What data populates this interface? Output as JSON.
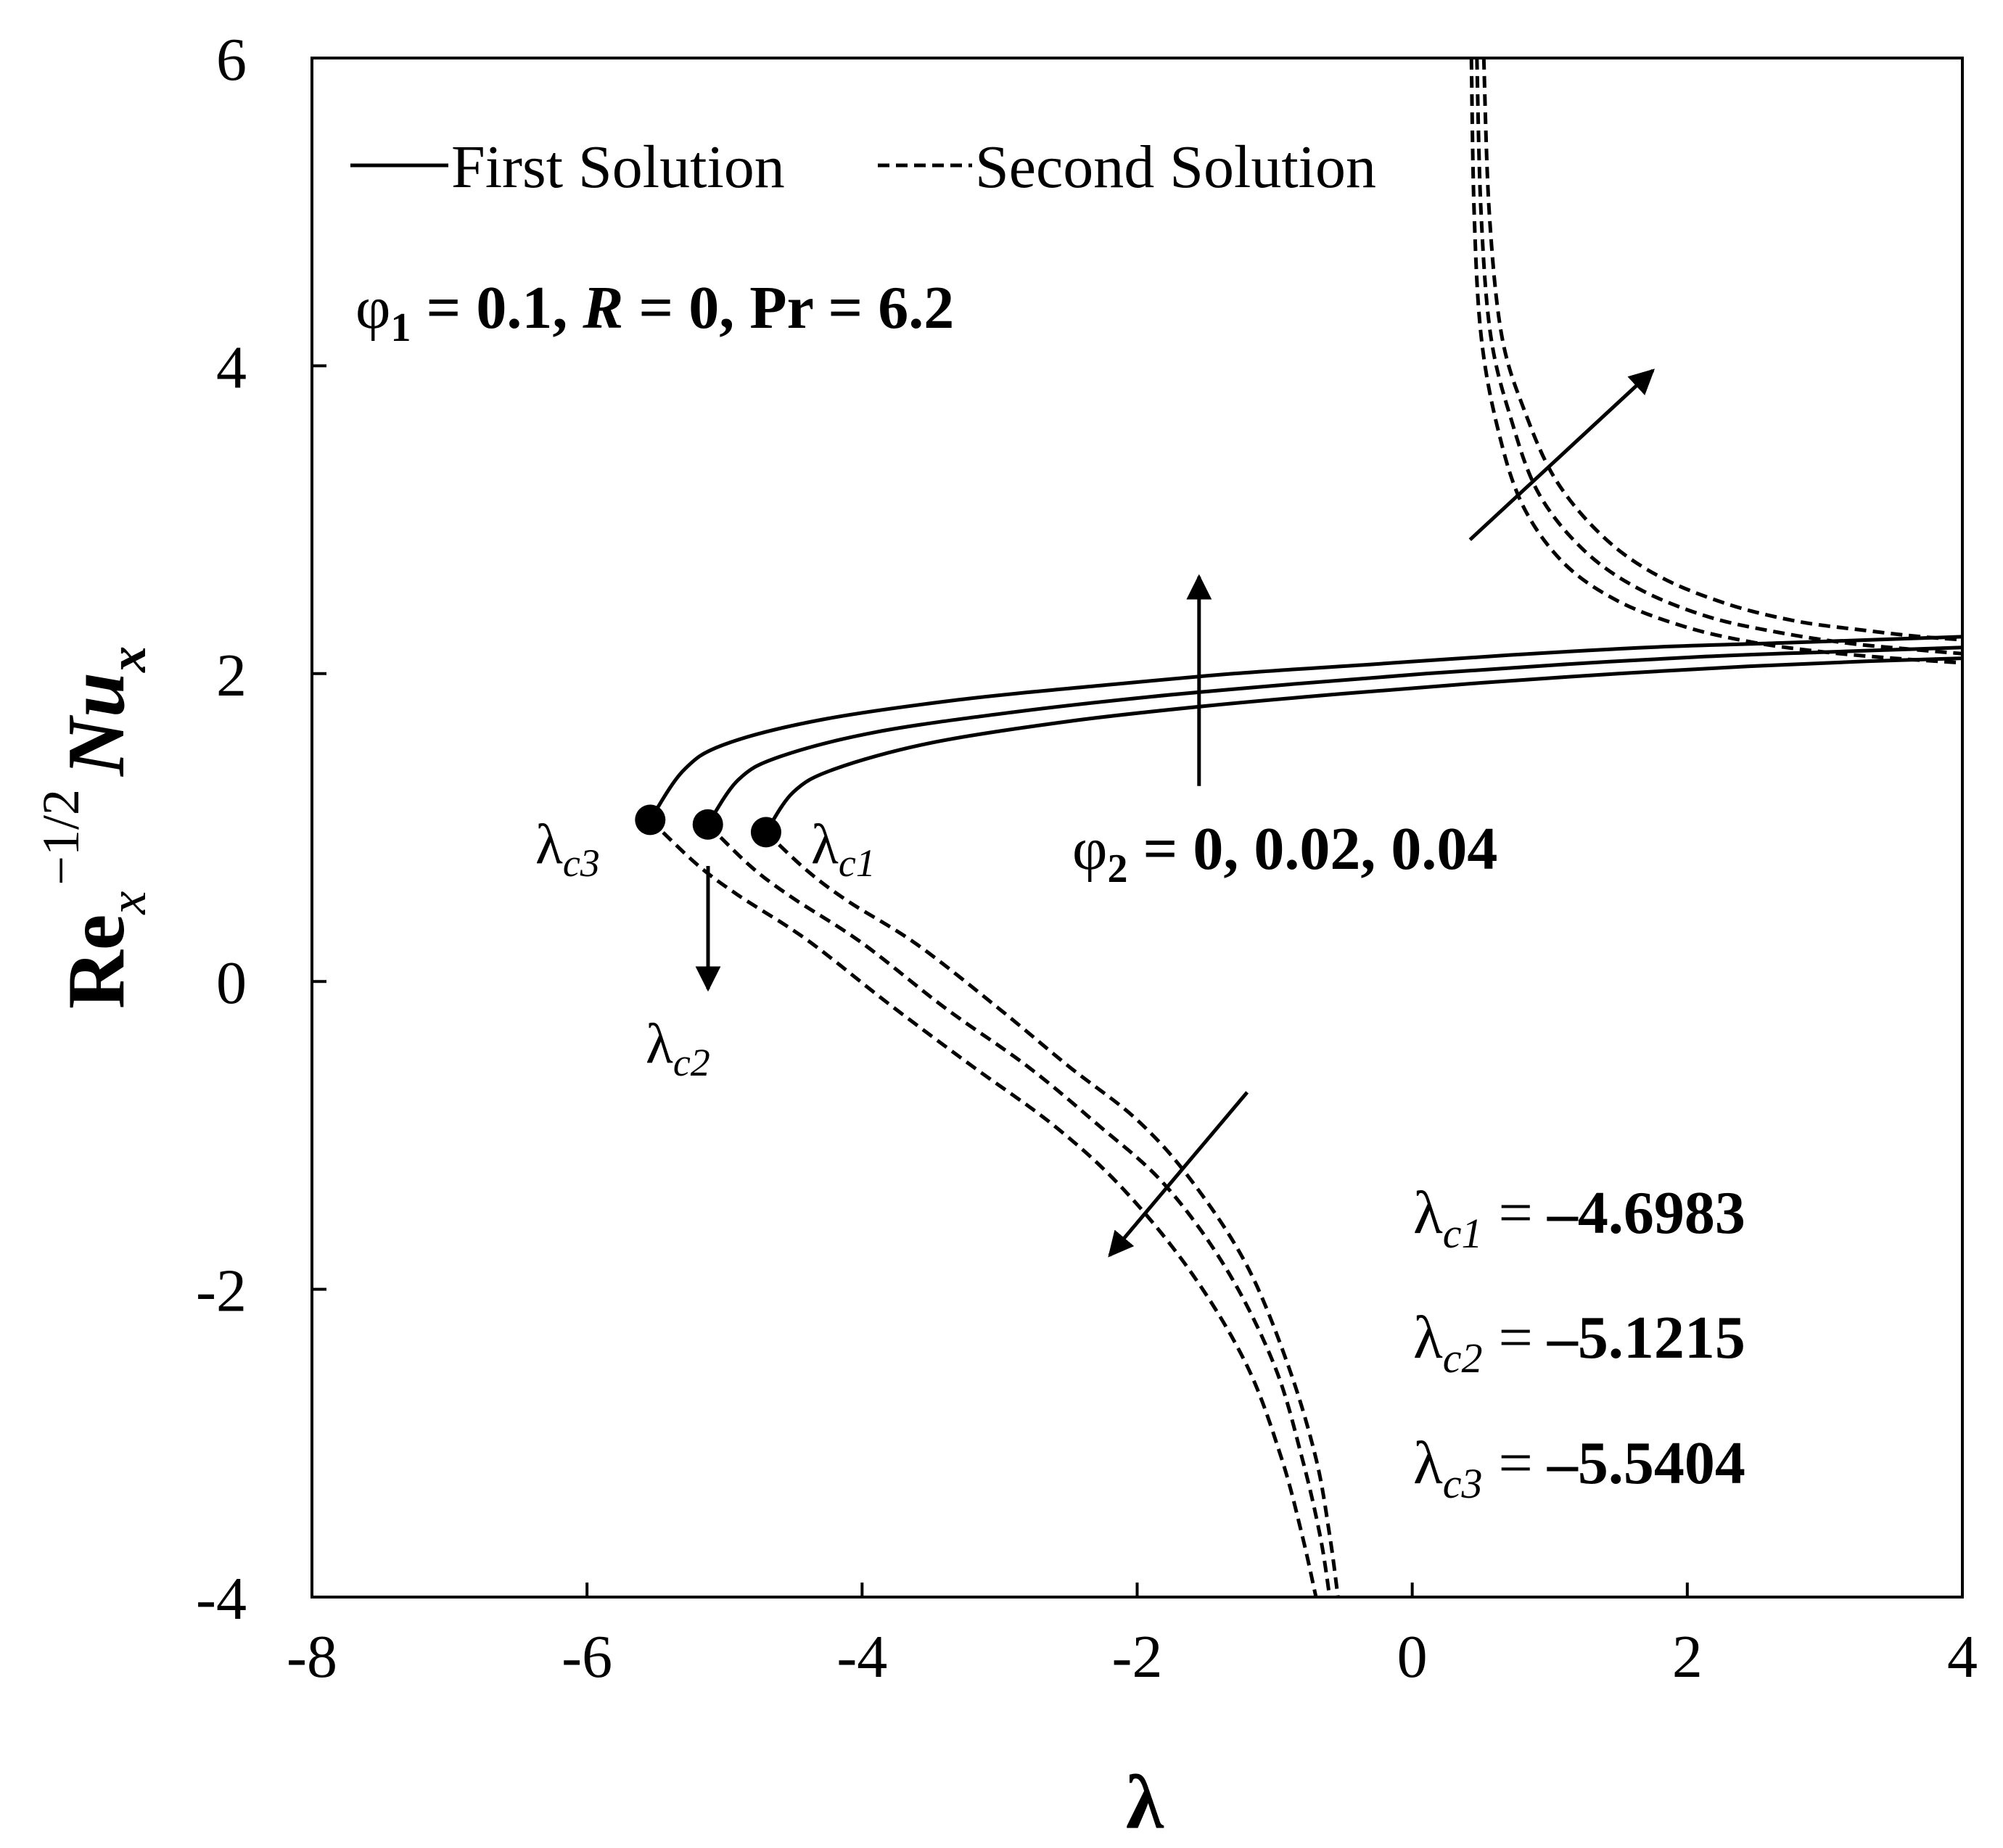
{
  "chart_data": {
    "type": "line",
    "xlabel": "λ",
    "ylabel": {
      "base": "Re",
      "base_sub": "x",
      "exponent": "−1/2",
      "main": "Nu",
      "main_sub": "x"
    },
    "xlim": [
      -8,
      4
    ],
    "ylim": [
      -4,
      6
    ],
    "x_ticks": [
      -8,
      -6,
      -4,
      -2,
      0,
      2,
      4
    ],
    "y_ticks": [
      -4,
      -2,
      0,
      2,
      4,
      6
    ],
    "x_tick_labels": [
      "-8",
      "-6",
      "-4",
      "-2",
      "0",
      "2",
      "4"
    ],
    "y_tick_labels": [
      "-4",
      "-2",
      "0",
      "2",
      "4",
      "6"
    ],
    "legend": {
      "placement": "top-left",
      "entries": [
        {
          "label": "First Solution",
          "style": "solid"
        },
        {
          "label": "Second Solution",
          "style": "dashed"
        }
      ]
    },
    "parameters": {
      "phi1": {
        "symbol": "φ",
        "sub": "1",
        "value": "0.1"
      },
      "R": {
        "symbol": "R",
        "value": "0"
      },
      "Pr": {
        "symbol": "Pr",
        "value": "6.2"
      }
    },
    "phi2_label": {
      "symbol": "φ",
      "sub": "2",
      "values": "0, 0.02, 0.04"
    },
    "critical_points": [
      {
        "label": "λ",
        "sub": "c1",
        "x": -4.6983,
        "y": 0.97,
        "value": "–4.6983"
      },
      {
        "label": "λ",
        "sub": "c2",
        "x": -5.1215,
        "y": 1.02,
        "value": "–5.1215"
      },
      {
        "label": "λ",
        "sub": "c3",
        "x": -5.5404,
        "y": 1.05,
        "value": "–5.5404"
      }
    ],
    "series": [
      {
        "style": "solid",
        "points": [
          [
            -4.6983,
            0.97
          ],
          [
            -4.5,
            1.23
          ],
          [
            -4.2,
            1.38
          ],
          [
            -3.5,
            1.55
          ],
          [
            -2.5,
            1.69
          ],
          [
            -1.5,
            1.79
          ],
          [
            -0.5,
            1.87
          ],
          [
            0.5,
            1.94
          ],
          [
            1.5,
            2.0
          ],
          [
            2.5,
            2.05
          ],
          [
            3.3,
            2.08
          ],
          [
            4.0,
            2.1
          ]
        ]
      },
      {
        "style": "solid",
        "points": [
          [
            -5.1215,
            1.02
          ],
          [
            -4.9,
            1.31
          ],
          [
            -4.6,
            1.46
          ],
          [
            -3.9,
            1.62
          ],
          [
            -2.9,
            1.75
          ],
          [
            -1.9,
            1.85
          ],
          [
            -0.9,
            1.93
          ],
          [
            0.1,
            2.0
          ],
          [
            1.1,
            2.06
          ],
          [
            2.1,
            2.11
          ],
          [
            3.0,
            2.14
          ],
          [
            4.0,
            2.17
          ]
        ]
      },
      {
        "style": "solid",
        "points": [
          [
            -5.5404,
            1.05
          ],
          [
            -5.3,
            1.37
          ],
          [
            -5.0,
            1.54
          ],
          [
            -4.3,
            1.7
          ],
          [
            -3.3,
            1.83
          ],
          [
            -2.3,
            1.92
          ],
          [
            -1.3,
            2.0
          ],
          [
            -0.3,
            2.06
          ],
          [
            0.7,
            2.12
          ],
          [
            1.7,
            2.17
          ],
          [
            2.7,
            2.2
          ],
          [
            4.0,
            2.24
          ]
        ]
      },
      {
        "style": "dashed",
        "points": [
          [
            -4.6983,
            0.97
          ],
          [
            -4.4,
            0.72
          ],
          [
            -4.1,
            0.52
          ],
          [
            -3.6,
            0.24
          ],
          [
            -3.0,
            -0.18
          ],
          [
            -2.5,
            -0.55
          ],
          [
            -2.0,
            -0.9
          ],
          [
            -1.6,
            -1.3
          ],
          [
            -1.2,
            -1.85
          ],
          [
            -0.9,
            -2.5
          ],
          [
            -0.7,
            -3.1
          ],
          [
            -0.6,
            -3.6
          ],
          [
            -0.54,
            -4.0
          ]
        ]
      },
      {
        "style": "dashed",
        "points": [
          [
            -5.1215,
            1.02
          ],
          [
            -4.8,
            0.74
          ],
          [
            -4.5,
            0.54
          ],
          [
            -4.0,
            0.25
          ],
          [
            -3.4,
            -0.17
          ],
          [
            -2.8,
            -0.55
          ],
          [
            -2.3,
            -0.92
          ],
          [
            -1.8,
            -1.32
          ],
          [
            -1.35,
            -1.87
          ],
          [
            -1.0,
            -2.5
          ],
          [
            -0.8,
            -3.1
          ],
          [
            -0.67,
            -3.6
          ],
          [
            -0.6,
            -4.0
          ]
        ]
      },
      {
        "style": "dashed",
        "points": [
          [
            -5.5404,
            1.05
          ],
          [
            -5.2,
            0.76
          ],
          [
            -4.9,
            0.56
          ],
          [
            -4.4,
            0.27
          ],
          [
            -3.8,
            -0.15
          ],
          [
            -3.2,
            -0.55
          ],
          [
            -2.6,
            -0.94
          ],
          [
            -2.1,
            -1.35
          ],
          [
            -1.6,
            -1.9
          ],
          [
            -1.2,
            -2.5
          ],
          [
            -0.95,
            -3.1
          ],
          [
            -0.8,
            -3.6
          ],
          [
            -0.7,
            -4.0
          ]
        ]
      },
      {
        "style": "dashed",
        "points": [
          [
            0.43,
            6.0
          ],
          [
            0.45,
            5.0
          ],
          [
            0.5,
            4.2
          ],
          [
            0.62,
            3.6
          ],
          [
            0.8,
            3.1
          ],
          [
            1.1,
            2.72
          ],
          [
            1.5,
            2.47
          ],
          [
            2.0,
            2.3
          ],
          [
            2.5,
            2.2
          ],
          [
            3.0,
            2.14
          ],
          [
            3.5,
            2.1
          ],
          [
            4.0,
            2.07
          ]
        ]
      },
      {
        "style": "dashed",
        "points": [
          [
            0.47,
            6.0
          ],
          [
            0.5,
            5.0
          ],
          [
            0.57,
            4.2
          ],
          [
            0.72,
            3.65
          ],
          [
            0.92,
            3.17
          ],
          [
            1.25,
            2.8
          ],
          [
            1.65,
            2.55
          ],
          [
            2.15,
            2.37
          ],
          [
            2.65,
            2.27
          ],
          [
            3.15,
            2.2
          ],
          [
            3.6,
            2.16
          ],
          [
            4.0,
            2.13
          ]
        ]
      },
      {
        "style": "dashed",
        "points": [
          [
            0.52,
            6.0
          ],
          [
            0.56,
            5.0
          ],
          [
            0.65,
            4.2
          ],
          [
            0.82,
            3.7
          ],
          [
            1.05,
            3.25
          ],
          [
            1.4,
            2.88
          ],
          [
            1.8,
            2.63
          ],
          [
            2.3,
            2.45
          ],
          [
            2.8,
            2.34
          ],
          [
            3.3,
            2.28
          ],
          [
            3.7,
            2.24
          ],
          [
            4.0,
            2.22
          ]
        ]
      }
    ],
    "arrows": [
      {
        "from": [
          -1.55,
          1.27
        ],
        "to": [
          -1.55,
          2.63
        ]
      },
      {
        "from": [
          -5.12,
          0.75
        ],
        "to": [
          -5.12,
          -0.05
        ]
      },
      {
        "from": [
          0.42,
          2.87
        ],
        "to": [
          1.75,
          3.97
        ]
      },
      {
        "from": [
          -1.2,
          -0.72
        ],
        "to": [
          -2.2,
          -1.78
        ]
      }
    ],
    "critical_values": [
      {
        "label": "λ",
        "sub": "c1",
        "eq": "=",
        "value": "–4.6983"
      },
      {
        "label": "λ",
        "sub": "c2",
        "eq": "=",
        "value": "–5.1215"
      },
      {
        "label": "λ",
        "sub": "c3",
        "eq": "=",
        "value": "–5.5404"
      }
    ]
  }
}
